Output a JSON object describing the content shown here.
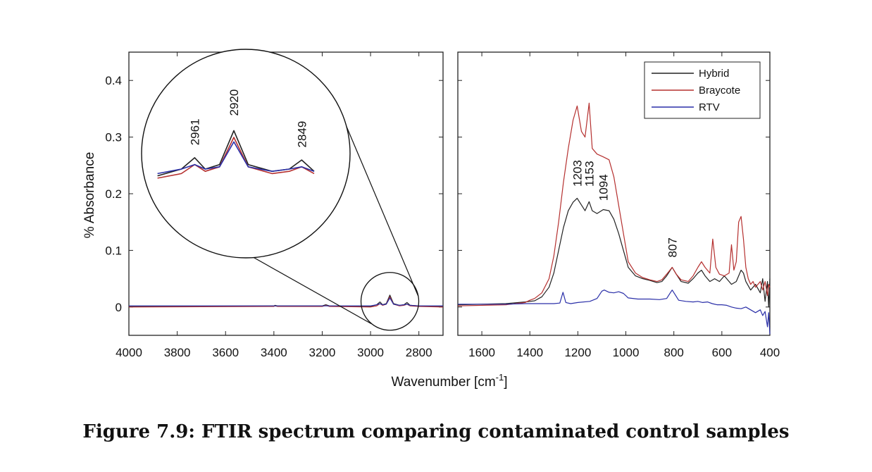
{
  "caption": "Figure 7.9: FTIR spectrum comparing contaminated control samples",
  "colors": {
    "Hybrid": "#222222",
    "Braycote": "#b5302f",
    "RTV": "#2a2fa8"
  },
  "chart_data": [
    {
      "type": "line",
      "panel": "left",
      "xlim": [
        4000,
        2700
      ],
      "ylim": [
        -0.05,
        0.45
      ],
      "ylabel": "% Absorbance",
      "x_ticks": [
        4000,
        3800,
        3600,
        3400,
        3200,
        3000,
        2800
      ],
      "y_ticks": [
        0,
        0.1,
        0.2,
        0.3,
        0.4
      ],
      "inset_peak_labels": [
        "2961",
        "2920",
        "2849"
      ],
      "series": [
        {
          "name": "Hybrid",
          "x": [
            4000,
            3400,
            3395,
            3385,
            3200,
            3185,
            3170,
            3000,
            2975,
            2961,
            2950,
            2935,
            2920,
            2905,
            2880,
            2862,
            2849,
            2836,
            2800,
            2700
          ],
          "y": [
            0.001,
            0.002,
            0.003,
            0.002,
            0.002,
            0.004,
            0.002,
            0.001,
            0.004,
            0.009,
            0.004,
            0.006,
            0.021,
            0.006,
            0.003,
            0.004,
            0.008,
            0.003,
            0.002,
            0.001
          ]
        },
        {
          "name": "Braycote",
          "x": [
            4000,
            3400,
            3395,
            3385,
            3200,
            3185,
            3170,
            3000,
            2975,
            2961,
            2950,
            2935,
            2920,
            2905,
            2880,
            2862,
            2849,
            2836,
            2800,
            2700
          ],
          "y": [
            0.0,
            0.001,
            0.002,
            0.001,
            0.001,
            0.003,
            0.001,
            0.0,
            0.002,
            0.006,
            0.003,
            0.005,
            0.018,
            0.005,
            0.002,
            0.003,
            0.005,
            0.002,
            0.001,
            0.0
          ]
        },
        {
          "name": "RTV",
          "x": [
            4000,
            3400,
            3200,
            3000,
            2975,
            2961,
            2950,
            2935,
            2920,
            2905,
            2880,
            2862,
            2849,
            2836,
            2800,
            2700
          ],
          "y": [
            0.002,
            0.002,
            0.002,
            0.002,
            0.004,
            0.006,
            0.004,
            0.005,
            0.016,
            0.005,
            0.003,
            0.004,
            0.005,
            0.003,
            0.002,
            0.002
          ]
        }
      ]
    },
    {
      "type": "line",
      "panel": "right",
      "xlim": [
        1700,
        400
      ],
      "ylim": [
        -0.05,
        0.45
      ],
      "xlabel": "Wavenumber [cm",
      "xlabel_sup": "-1",
      "xlabel_end": "]",
      "x_ticks": [
        1600,
        1400,
        1200,
        1000,
        800,
        600,
        400
      ],
      "y_ticks": [
        0,
        0.1,
        0.2,
        0.3,
        0.4
      ],
      "legend": {
        "position": "top-right",
        "entries": [
          "Hybrid",
          "Braycote",
          "RTV"
        ]
      },
      "peak_labels": [
        {
          "text": "1203",
          "x": 1203,
          "y": 0.205
        },
        {
          "text": "1153",
          "x": 1153,
          "y": 0.205
        },
        {
          "text": "1094",
          "x": 1094,
          "y": 0.18
        },
        {
          "text": "807",
          "x": 807,
          "y": 0.08
        }
      ],
      "series": [
        {
          "name": "Hybrid",
          "x": [
            1700,
            1500,
            1420,
            1400,
            1380,
            1350,
            1320,
            1300,
            1280,
            1260,
            1240,
            1220,
            1203,
            1185,
            1170,
            1153,
            1140,
            1120,
            1094,
            1070,
            1050,
            1030,
            1010,
            990,
            960,
            930,
            900,
            870,
            850,
            830,
            807,
            790,
            770,
            740,
            720,
            700,
            685,
            670,
            650,
            630,
            610,
            590,
            560,
            540,
            520,
            510,
            500,
            480,
            460,
            440,
            430,
            420,
            410,
            405,
            400
          ],
          "y": [
            0.004,
            0.006,
            0.009,
            0.01,
            0.011,
            0.018,
            0.035,
            0.06,
            0.1,
            0.14,
            0.17,
            0.185,
            0.192,
            0.18,
            0.17,
            0.186,
            0.17,
            0.165,
            0.172,
            0.17,
            0.155,
            0.13,
            0.1,
            0.07,
            0.055,
            0.05,
            0.047,
            0.043,
            0.045,
            0.055,
            0.07,
            0.058,
            0.045,
            0.042,
            0.05,
            0.06,
            0.065,
            0.055,
            0.045,
            0.05,
            0.045,
            0.055,
            0.04,
            0.045,
            0.065,
            0.06,
            0.045,
            0.03,
            0.04,
            0.025,
            0.05,
            0.01,
            0.045,
            0.0,
            0.05
          ]
        },
        {
          "name": "Braycote",
          "x": [
            1700,
            1500,
            1420,
            1400,
            1380,
            1350,
            1320,
            1300,
            1280,
            1260,
            1240,
            1220,
            1203,
            1185,
            1170,
            1153,
            1140,
            1120,
            1094,
            1070,
            1050,
            1030,
            1010,
            990,
            960,
            930,
            900,
            870,
            850,
            830,
            807,
            790,
            770,
            740,
            720,
            700,
            685,
            670,
            650,
            638,
            625,
            610,
            590,
            570,
            560,
            550,
            540,
            530,
            520,
            510,
            500,
            490,
            480,
            470,
            460,
            440,
            430,
            420,
            410,
            405,
            400
          ],
          "y": [
            0.002,
            0.004,
            0.008,
            0.012,
            0.015,
            0.025,
            0.05,
            0.09,
            0.15,
            0.22,
            0.28,
            0.33,
            0.355,
            0.31,
            0.3,
            0.36,
            0.28,
            0.27,
            0.265,
            0.26,
            0.23,
            0.18,
            0.13,
            0.08,
            0.06,
            0.052,
            0.048,
            0.045,
            0.048,
            0.058,
            0.07,
            0.058,
            0.048,
            0.045,
            0.055,
            0.07,
            0.08,
            0.07,
            0.06,
            0.12,
            0.07,
            0.058,
            0.055,
            0.06,
            0.11,
            0.065,
            0.08,
            0.15,
            0.16,
            0.12,
            0.07,
            0.05,
            0.04,
            0.045,
            0.035,
            0.045,
            0.03,
            0.045,
            0.02,
            0.04,
            0.035
          ]
        },
        {
          "name": "RTV",
          "x": [
            1700,
            1500,
            1420,
            1300,
            1275,
            1262,
            1250,
            1230,
            1200,
            1150,
            1120,
            1100,
            1090,
            1070,
            1050,
            1030,
            1010,
            990,
            950,
            900,
            860,
            830,
            815,
            807,
            795,
            780,
            750,
            720,
            700,
            680,
            660,
            640,
            620,
            600,
            580,
            560,
            540,
            520,
            500,
            480,
            460,
            440,
            430,
            420,
            410,
            405,
            400
          ],
          "y": [
            0.005,
            0.005,
            0.006,
            0.006,
            0.007,
            0.026,
            0.008,
            0.006,
            0.008,
            0.01,
            0.015,
            0.028,
            0.03,
            0.026,
            0.025,
            0.027,
            0.024,
            0.016,
            0.014,
            0.014,
            0.013,
            0.015,
            0.025,
            0.03,
            0.022,
            0.012,
            0.01,
            0.009,
            0.01,
            0.008,
            0.009,
            0.006,
            0.004,
            0.004,
            0.003,
            0.0,
            -0.002,
            -0.003,
            0.0,
            -0.005,
            -0.01,
            -0.005,
            -0.015,
            -0.008,
            -0.035,
            -0.01,
            -0.048
          ]
        }
      ]
    }
  ]
}
